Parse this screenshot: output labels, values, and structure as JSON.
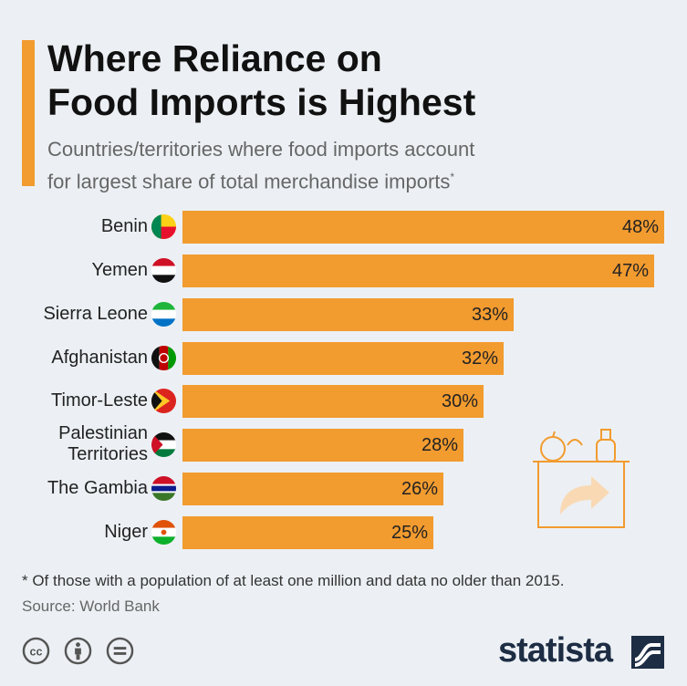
{
  "header": {
    "title_line1": "Where Reliance on",
    "title_line2": "Food Imports is Highest",
    "subtitle_line1": "Countries/territories where food imports account",
    "subtitle_line2": "for largest share of total merchandise imports",
    "subtitle_marker": "*"
  },
  "chart_data": {
    "type": "bar",
    "orientation": "horizontal",
    "categories": [
      "Benin",
      "Yemen",
      "Sierra Leone",
      "Afghanistan",
      "Timor-Leste",
      "Palestinian Territories",
      "The Gambia",
      "Niger"
    ],
    "values": [
      48,
      47,
      33,
      32,
      30,
      28,
      26,
      25
    ],
    "value_labels": [
      "48%",
      "47%",
      "33%",
      "32%",
      "30%",
      "28%",
      "26%",
      "25%"
    ],
    "unit": "%",
    "bar_color": "#f29b2f",
    "xlim": [
      0,
      48
    ],
    "grid": false,
    "legend": "none"
  },
  "labels": {
    "palestinian_line1": "Palestinian",
    "palestinian_line2": "Territories"
  },
  "footer": {
    "footnote": "* Of those with a population of at least one million and data no older than 2015.",
    "source": "Source: World Bank",
    "brand": "statista"
  },
  "icons": [
    "cc-icon",
    "attribution-icon",
    "no-derivatives-icon",
    "statista-logo-icon",
    "grocery-box-icon",
    "apple-icon",
    "bottle-icon",
    "arrow-icon"
  ],
  "colors": {
    "accent": "#f29b2f",
    "background": "#ecf0f4",
    "brand": "#1d2d44"
  }
}
